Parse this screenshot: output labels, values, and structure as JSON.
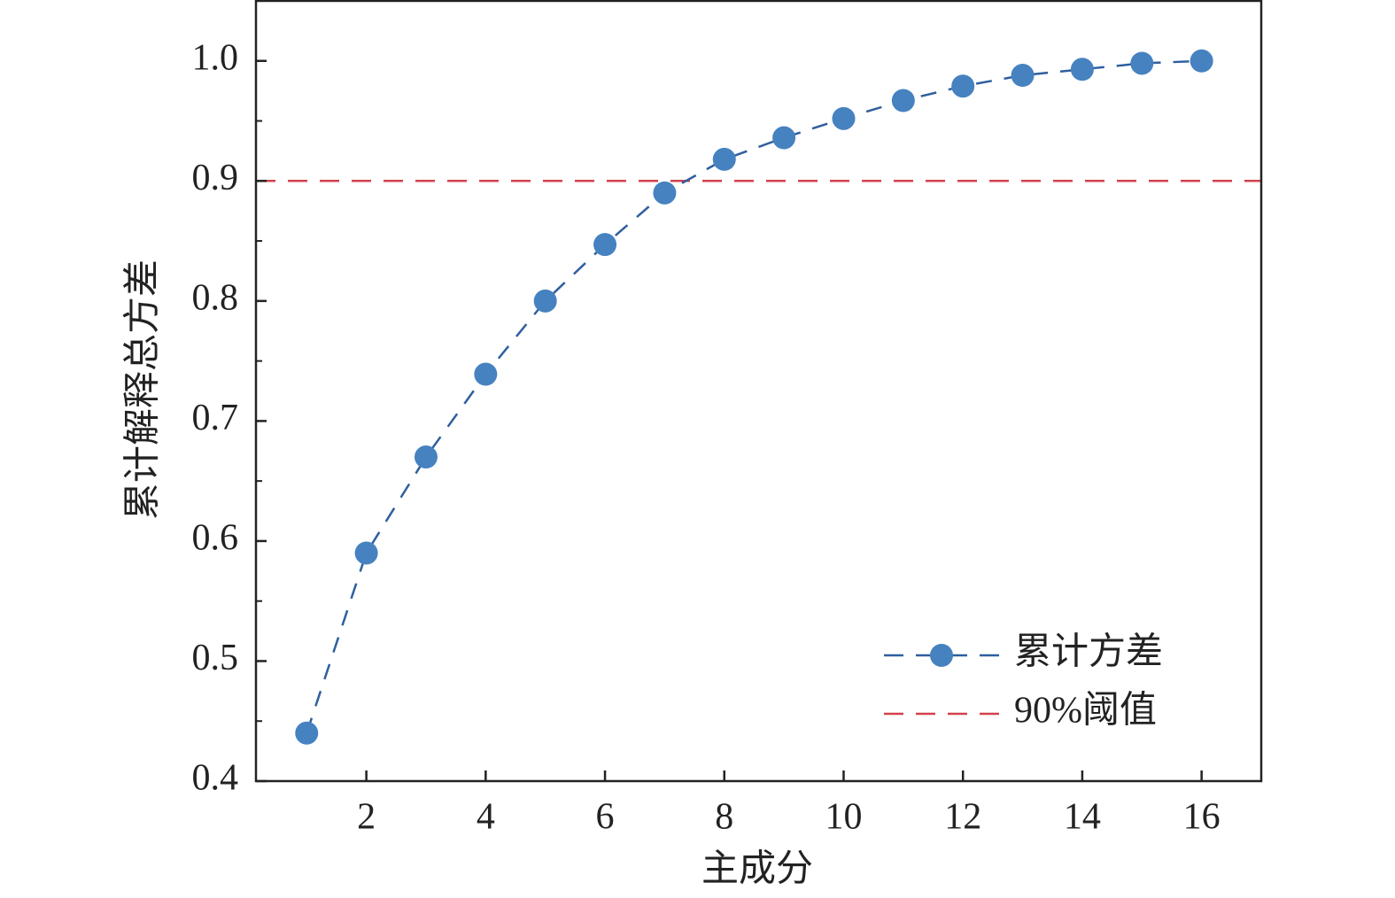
{
  "chart_data": {
    "type": "line",
    "x_label": "主成分",
    "y_label": "累计解释总方差",
    "x": [
      1,
      2,
      3,
      4,
      5,
      6,
      7,
      8,
      9,
      10,
      11,
      12,
      13,
      14,
      15,
      16
    ],
    "series": [
      {
        "name": "累计方差",
        "color": "#4682c0",
        "line_color": "#2f5f9e",
        "values": [
          0.44,
          0.59,
          0.67,
          0.739,
          0.8,
          0.847,
          0.89,
          0.918,
          0.936,
          0.952,
          0.967,
          0.979,
          0.988,
          0.993,
          0.998,
          1.0
        ]
      }
    ],
    "reference_lines": [
      {
        "name": "90%阈值",
        "value": 0.9,
        "color": "#d2424e"
      }
    ],
    "xlim": [
      0.15,
      17
    ],
    "xticks": [
      2,
      4,
      6,
      8,
      10,
      12,
      14,
      16
    ],
    "ylim": [
      0.4,
      1.05
    ],
    "yticks": [
      0.4,
      0.5,
      0.6,
      0.7,
      0.8,
      0.9,
      {
        "value": 1,
        "label": "1.0"
      }
    ],
    "yminorticks": [
      0.45,
      0.55,
      0.65,
      0.75,
      0.85,
      0.95,
      1.05
    ],
    "legend": "lower right"
  }
}
